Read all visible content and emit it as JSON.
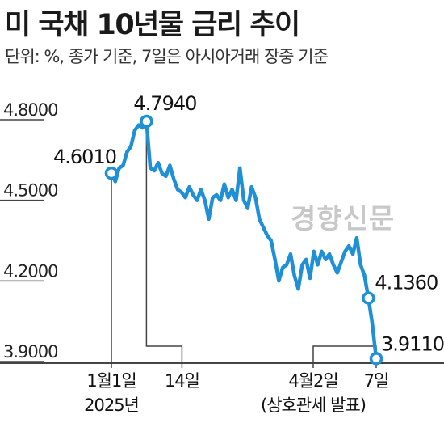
{
  "title": "미 국채 10년물 금리 추이",
  "subtitle": "단위: %, 종가 기준, 7일은 아시아거래 장중 기준",
  "watermark": "경향신문",
  "colors": {
    "line": "#1f8fd6",
    "axis": "#444444",
    "text": "#1a1a1a",
    "marker_fill": "#ffffff"
  },
  "chart_data": {
    "type": "line",
    "title": "미 국채 10년물 금리 추이",
    "unit": "%",
    "ylim": [
      3.85,
      4.85
    ],
    "yticks": [
      4.8,
      4.5,
      4.2,
      3.9
    ],
    "ytick_labels": [
      "4.8000",
      "4.5000",
      "4.2000",
      "3.9000"
    ],
    "x_labels": [
      {
        "x": 0,
        "lines": [
          "1월1일",
          "2025년"
        ]
      },
      {
        "x": 9,
        "lines": [
          "14일"
        ]
      },
      {
        "x": 61,
        "lines": [
          "4월2일",
          "(상호관세 발표)"
        ]
      },
      {
        "x": 66,
        "lines": [
          "7일"
        ]
      }
    ],
    "x_range": [
      0,
      66
    ],
    "values": [
      4.601,
      4.57,
      4.62,
      4.63,
      4.68,
      4.7,
      4.76,
      4.78,
      4.77,
      4.794,
      4.62,
      4.61,
      4.64,
      4.6,
      4.59,
      4.63,
      4.58,
      4.54,
      4.53,
      4.51,
      4.55,
      4.52,
      4.5,
      4.54,
      4.5,
      4.43,
      4.51,
      4.52,
      4.5,
      4.56,
      4.51,
      4.54,
      4.5,
      4.62,
      4.5,
      4.47,
      4.55,
      4.51,
      4.43,
      4.4,
      4.37,
      4.35,
      4.28,
      4.2,
      4.25,
      4.26,
      4.3,
      4.22,
      4.17,
      4.26,
      4.28,
      4.21,
      4.31,
      4.26,
      4.31,
      4.28,
      4.3,
      4.26,
      4.23,
      4.27,
      4.31,
      4.33,
      4.3,
      4.36,
      4.26,
      4.22,
      4.136,
      4.04,
      3.911
    ],
    "annotations": [
      {
        "label": "4.6010",
        "index": 0
      },
      {
        "label": "4.7940",
        "index": 9
      },
      {
        "label": "4.1360",
        "index": 66
      },
      {
        "label": "3.9110",
        "index": 68
      }
    ]
  }
}
